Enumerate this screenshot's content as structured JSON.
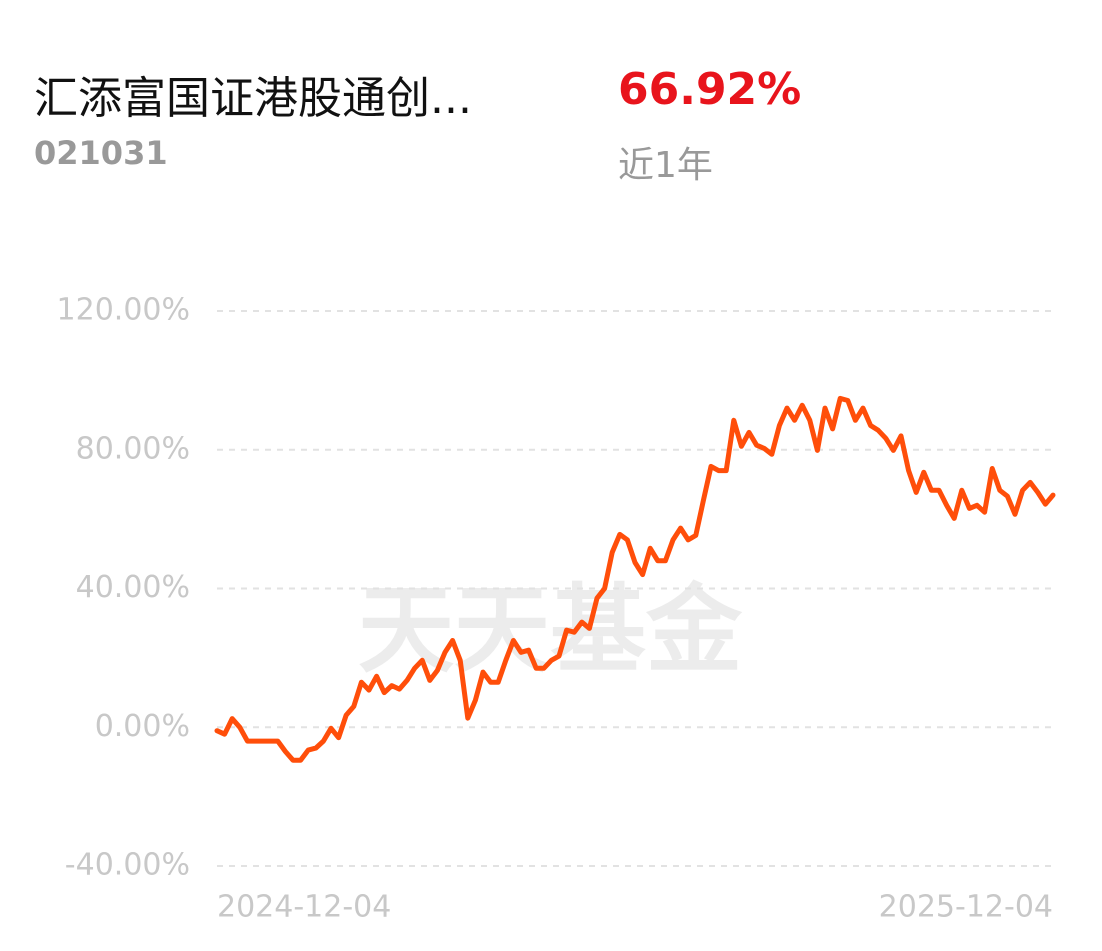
{
  "header": {
    "title": "汇添富国证港股通创...",
    "code": "021031",
    "return": "66.92%",
    "period": "近1年"
  },
  "chart_data": {
    "type": "line",
    "watermark": "天天基金",
    "color": "#ff4e0a",
    "categories": [
      "2024-12-04",
      null,
      null,
      null,
      null,
      null,
      null,
      null,
      null,
      null,
      null,
      null,
      null,
      null,
      null,
      null,
      null,
      null,
      null,
      null,
      null,
      null,
      null,
      null,
      null,
      null,
      null,
      null,
      null,
      null,
      null,
      null,
      null,
      null,
      null,
      null,
      null,
      null,
      null,
      null,
      null,
      null,
      null,
      null,
      null,
      null,
      null,
      null,
      null,
      null,
      null,
      null,
      null,
      null,
      null,
      null,
      null,
      null,
      null,
      null,
      null,
      null,
      null,
      null,
      null,
      null,
      null,
      null,
      null,
      null,
      null,
      null,
      null,
      null,
      null,
      null,
      null,
      null,
      null,
      null,
      null,
      null,
      null,
      null,
      null,
      null,
      null,
      null,
      null,
      null,
      null,
      null,
      null,
      null,
      null,
      null,
      null,
      null,
      null,
      null,
      null,
      null,
      null,
      null,
      null,
      null,
      null,
      null,
      null,
      null,
      "2025-12-04"
    ],
    "values": [
      -1,
      -2,
      2.5,
      0,
      -4,
      -4,
      -4,
      -4,
      -4,
      -7,
      -9.5,
      -9.5,
      -6.6,
      -6,
      -4,
      -0.3,
      -3,
      3.5,
      6,
      13,
      10.7,
      14.7,
      10,
      12,
      11,
      13.5,
      17,
      19.3,
      13.5,
      16.4,
      21.6,
      25,
      19.3,
      2.6,
      7.8,
      15.9,
      13,
      13,
      19.3,
      25,
      21.6,
      22.2,
      17,
      17,
      19.3,
      20.5,
      28,
      27.4,
      30.3,
      28.5,
      37.2,
      40,
      50.4,
      55.6,
      54,
      47.5,
      44,
      51.6,
      48,
      48,
      54,
      57.4,
      54,
      55.3,
      65.4,
      75.2,
      74,
      74,
      88.5,
      81,
      85,
      81.3,
      80.4,
      78.7,
      87,
      92,
      88.5,
      92.8,
      88.5,
      79.8,
      92,
      86,
      94.8,
      94.2,
      88.5,
      92,
      87,
      85.6,
      83.3,
      79.8,
      84,
      74,
      67.7,
      73.5,
      68.3,
      68.3,
      64,
      60.2,
      68.3,
      63.1,
      64,
      62,
      74.6,
      68.3,
      66.6,
      61.4,
      68.3,
      70.6,
      67.7,
      64.3,
      66.92
    ],
    "ylim": [
      -40,
      120
    ],
    "yticks": [
      {
        "value": -40,
        "label": "-40.00%"
      },
      {
        "value": 0,
        "label": "0.00%"
      },
      {
        "value": 40,
        "label": "40.00%"
      },
      {
        "value": 80,
        "label": "80.00%"
      },
      {
        "value": 120,
        "label": "120.00%"
      }
    ],
    "grid": true
  }
}
